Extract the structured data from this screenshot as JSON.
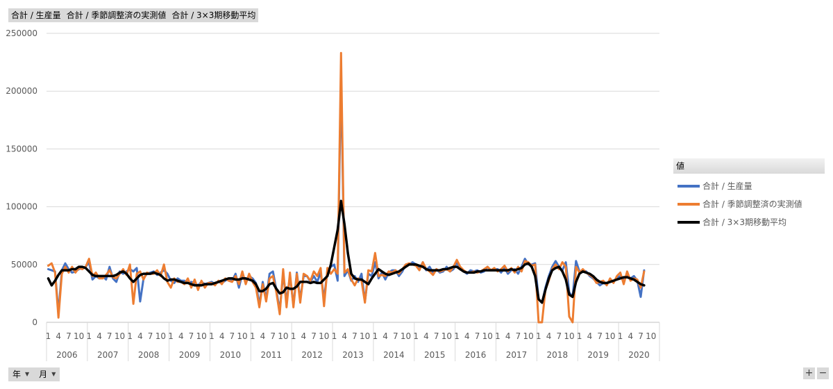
{
  "field_buttons": [
    "合計 / 生産量",
    "合計 / 季節調整済の実測値",
    "合計 / 3×3期移動平均"
  ],
  "axis_field_buttons": [
    "年",
    "月"
  ],
  "zoom": {
    "plus": "+",
    "minus": "−"
  },
  "legend": {
    "title": "値",
    "items": [
      {
        "label": "合計 / 生産量",
        "color": "#4472c4"
      },
      {
        "label": "合計 / 季節調整済の実測値",
        "color": "#ed7d31"
      },
      {
        "label": "合計 / 3×3期移動平均",
        "color": "#000000"
      }
    ]
  },
  "chart_data": {
    "type": "line",
    "y_ticks": [
      0,
      50000,
      100000,
      150000,
      200000,
      250000
    ],
    "ylim": [
      0,
      250000
    ],
    "month_tick_labels": [
      "1",
      "4",
      "7",
      "10"
    ],
    "years": [
      "2006",
      "2007",
      "2008",
      "2009",
      "2010",
      "2011",
      "2012",
      "2013",
      "2014",
      "2015",
      "2016",
      "2017",
      "2018",
      "2019",
      "2020"
    ],
    "grid": true,
    "legend_position": "right",
    "series": [
      {
        "name": "合計 / 生産量",
        "color": "#4472c4",
        "width": 3,
        "values": [
          46000,
          45000,
          44000,
          8000,
          45000,
          51000,
          46000,
          43000,
          44000,
          46000,
          47000,
          48000,
          52000,
          37000,
          40000,
          38000,
          40000,
          37000,
          48000,
          38000,
          35000,
          44000,
          42000,
          44000,
          46000,
          44000,
          47000,
          18000,
          38000,
          42000,
          43000,
          44000,
          41000,
          43000,
          45000,
          42000,
          36000,
          34000,
          38000,
          36000,
          36000,
          34000,
          35000,
          34000,
          32000,
          35000,
          33000,
          34000,
          35000,
          33000,
          35000,
          34000,
          36000,
          38000,
          36000,
          42000,
          30000,
          42000,
          35000,
          40000,
          38000,
          34000,
          15000,
          35000,
          20000,
          42000,
          44000,
          28000,
          10000,
          42000,
          18000,
          40000,
          15000,
          43000,
          20000,
          40000,
          40000,
          35000,
          40000,
          35000,
          43000,
          20000,
          45000,
          48000,
          50000,
          36000,
          215000,
          40000,
          45000,
          36000,
          40000,
          35000,
          42000,
          18000,
          42000,
          40000,
          52000,
          38000,
          43000,
          37000,
          43000,
          45000,
          45000,
          40000,
          44000,
          50000,
          50000,
          52000,
          50000,
          46000,
          52000,
          45000,
          48000,
          43000,
          46000,
          43000,
          44000,
          48000,
          44000,
          46000,
          52000,
          46000,
          44000,
          42000,
          45000,
          44000,
          45000,
          43000,
          44000,
          48000,
          45000,
          46000,
          46000,
          43000,
          47000,
          42000,
          45000,
          46000,
          42000,
          48000,
          55000,
          50000,
          50000,
          51000,
          20000,
          17000,
          30000,
          40000,
          48000,
          53000,
          48000,
          45000,
          52000,
          26000,
          22000,
          53000,
          44000,
          45000,
          44000,
          40000,
          38000,
          35000,
          32000,
          34000,
          33000,
          36000,
          35000,
          38000,
          40000,
          37000,
          40000,
          38000,
          40000,
          36000,
          22000,
          45000
        ]
      },
      {
        "name": "合計 / 季節調整済の実測値",
        "color": "#ed7d31",
        "width": 3,
        "values": [
          49000,
          51000,
          43000,
          4000,
          42000,
          48000,
          43000,
          48000,
          43000,
          47000,
          46000,
          48000,
          55000,
          40000,
          43000,
          38000,
          38000,
          41000,
          45000,
          39000,
          38000,
          42000,
          46000,
          41000,
          50000,
          16000,
          42000,
          44000,
          37000,
          43000,
          42000,
          42000,
          45000,
          40000,
          50000,
          35000,
          30000,
          38000,
          35000,
          35000,
          33000,
          38000,
          30000,
          37000,
          28000,
          36000,
          30000,
          34000,
          34000,
          32000,
          36000,
          33000,
          38000,
          36000,
          35000,
          40000,
          33000,
          44000,
          33000,
          42000,
          35000,
          30000,
          13000,
          33000,
          18000,
          38000,
          40000,
          26000,
          7000,
          46000,
          13000,
          43000,
          13000,
          42000,
          17000,
          42000,
          40000,
          36000,
          44000,
          40000,
          47000,
          14000,
          47000,
          42000,
          46000,
          42000,
          233000,
          43000,
          46000,
          37000,
          32000,
          38000,
          36000,
          17000,
          45000,
          44000,
          60000,
          40000,
          41000,
          40000,
          44000,
          43000,
          45000,
          42000,
          46000,
          50000,
          51000,
          50000,
          49000,
          45000,
          52000,
          46000,
          44000,
          41000,
          46000,
          44000,
          45000,
          46000,
          44000,
          48000,
          54000,
          48000,
          45000,
          43000,
          43000,
          44000,
          43000,
          44000,
          46000,
          48000,
          45000,
          47000,
          44000,
          46000,
          49000,
          44000,
          47000,
          43000,
          48000,
          44000,
          53000,
          52000,
          49000,
          50000,
          0,
          0,
          28000,
          36000,
          46000,
          50000,
          46000,
          52000,
          48000,
          5000,
          0,
          48000,
          43000,
          46000,
          43000,
          41000,
          39000,
          34000,
          35000,
          36000,
          32000,
          38000,
          34000,
          40000,
          43000,
          33000,
          44000,
          36000,
          38000,
          37000,
          30000,
          44000
        ]
      },
      {
        "name": "合計 / 3×3期移動平均",
        "color": "#000000",
        "width": 3.5,
        "values": [
          38000,
          32000,
          36000,
          41000,
          45000,
          45000,
          45000,
          46000,
          46000,
          48000,
          48000,
          47000,
          44000,
          41000,
          40000,
          40000,
          40000,
          40000,
          40000,
          40000,
          41000,
          43000,
          44000,
          42000,
          38000,
          35000,
          38000,
          41000,
          42000,
          42000,
          42000,
          43000,
          42000,
          41000,
          38000,
          36000,
          37000,
          37000,
          36000,
          35000,
          34000,
          34000,
          33000,
          32000,
          32000,
          32000,
          33000,
          33000,
          33000,
          34000,
          35000,
          36000,
          37000,
          38000,
          38000,
          37000,
          37000,
          38000,
          38000,
          37000,
          36000,
          33000,
          27000,
          27000,
          29000,
          33000,
          34000,
          29000,
          25000,
          26000,
          30000,
          29000,
          29000,
          31000,
          35000,
          35000,
          35000,
          34000,
          35000,
          34000,
          34000,
          37000,
          40000,
          50000,
          65000,
          80000,
          105000,
          85000,
          60000,
          42000,
          38000,
          37000,
          37000,
          35000,
          33000,
          38000,
          42000,
          46000,
          44000,
          42000,
          41000,
          42000,
          43000,
          44000,
          46000,
          48000,
          50000,
          50000,
          50000,
          49000,
          48000,
          46000,
          45000,
          45000,
          45000,
          45000,
          46000,
          46000,
          47000,
          48000,
          48000,
          46000,
          44000,
          43000,
          43000,
          43000,
          44000,
          44000,
          45000,
          45000,
          45000,
          45000,
          45000,
          45000,
          45000,
          45000,
          46000,
          45000,
          46000,
          47000,
          50000,
          51000,
          48000,
          40000,
          20000,
          17000,
          28000,
          38000,
          45000,
          47000,
          48000,
          44000,
          37000,
          24000,
          22000,
          35000,
          42000,
          44000,
          43000,
          42000,
          40000,
          37000,
          35000,
          34000,
          34000,
          35000,
          36000,
          37000,
          38000,
          39000,
          39000,
          38000,
          37000,
          35000,
          33000,
          32000
        ]
      }
    ]
  }
}
